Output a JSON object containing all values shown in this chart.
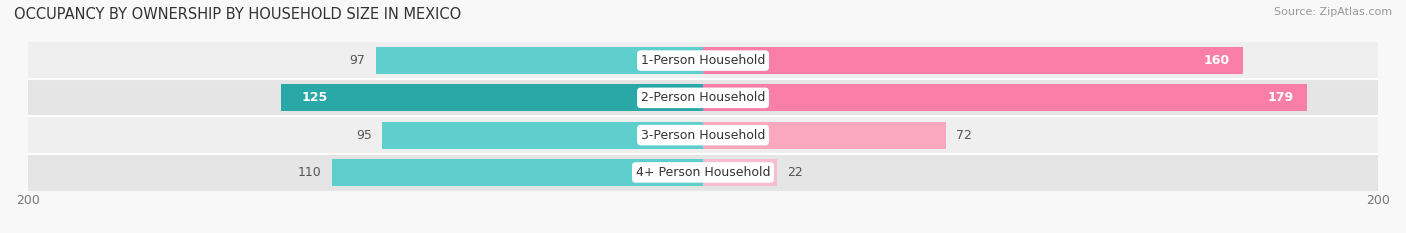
{
  "title": "OCCUPANCY BY OWNERSHIP BY HOUSEHOLD SIZE IN MEXICO",
  "source": "Source: ZipAtlas.com",
  "categories": [
    "1-Person Household",
    "2-Person Household",
    "3-Person Household",
    "4+ Person Household"
  ],
  "owner_values": [
    97,
    125,
    95,
    110
  ],
  "renter_values": [
    160,
    179,
    72,
    22
  ],
  "max_val": 200,
  "owner_colors": [
    "#5ECFCC",
    "#2AA8A8",
    "#5ECFCC",
    "#5ECFCC"
  ],
  "renter_colors": [
    "#F97FA8",
    "#F97FA8",
    "#F9A8C0",
    "#F9BDD0"
  ],
  "row_bg_colors": [
    "#EFEFEF",
    "#E5E5E5",
    "#EFEFEF",
    "#E5E5E5"
  ],
  "bar_height": 0.72,
  "title_fontsize": 10.5,
  "source_fontsize": 8,
  "axis_label_fontsize": 9,
  "bar_label_fontsize": 9,
  "category_fontsize": 9,
  "legend_fontsize": 9,
  "figure_bg": "#F8F8F8"
}
